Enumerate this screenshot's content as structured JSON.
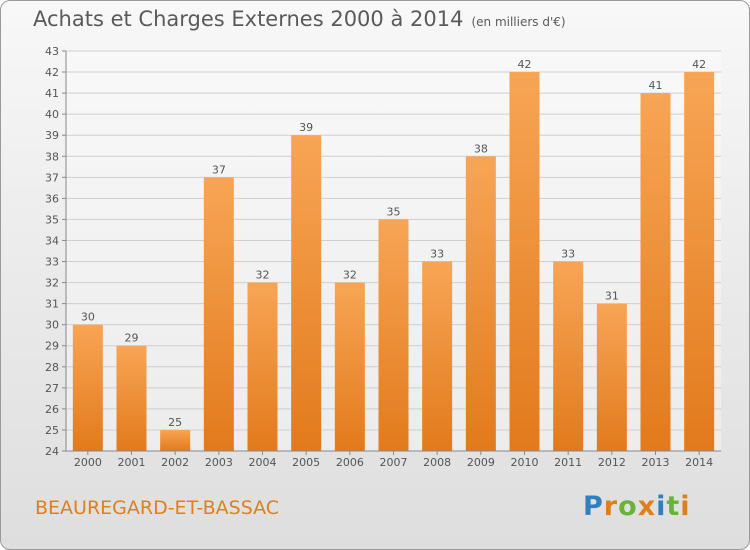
{
  "header": {
    "title": "Achats et Charges Externes 2000 à 2014",
    "unit": "(en milliers d'€)"
  },
  "footer": {
    "commune": "BEAUREGARD-ET-BASSAC",
    "brand": "Proxiti"
  },
  "colors": {
    "bar_top": "#f7a555",
    "bar_bottom": "#e27a1c",
    "commune_text": "#e07f1a"
  },
  "chart_data": {
    "type": "bar",
    "title": "Achats et Charges Externes 2000 à 2014",
    "subtitle": "(en milliers d'€)",
    "categories": [
      "2000",
      "2001",
      "2002",
      "2003",
      "2004",
      "2005",
      "2006",
      "2007",
      "2008",
      "2009",
      "2010",
      "2011",
      "2012",
      "2013",
      "2014"
    ],
    "values": [
      30,
      29,
      25,
      37,
      32,
      39,
      32,
      35,
      33,
      38,
      42,
      33,
      31,
      41,
      42
    ],
    "xlabel": "",
    "ylabel": "",
    "ylim": [
      24,
      43
    ],
    "yticks": [
      24,
      25,
      26,
      27,
      28,
      29,
      30,
      31,
      32,
      33,
      34,
      35,
      36,
      37,
      38,
      39,
      40,
      41,
      42,
      43
    ],
    "grid": "horizontal",
    "data_labels": true
  }
}
